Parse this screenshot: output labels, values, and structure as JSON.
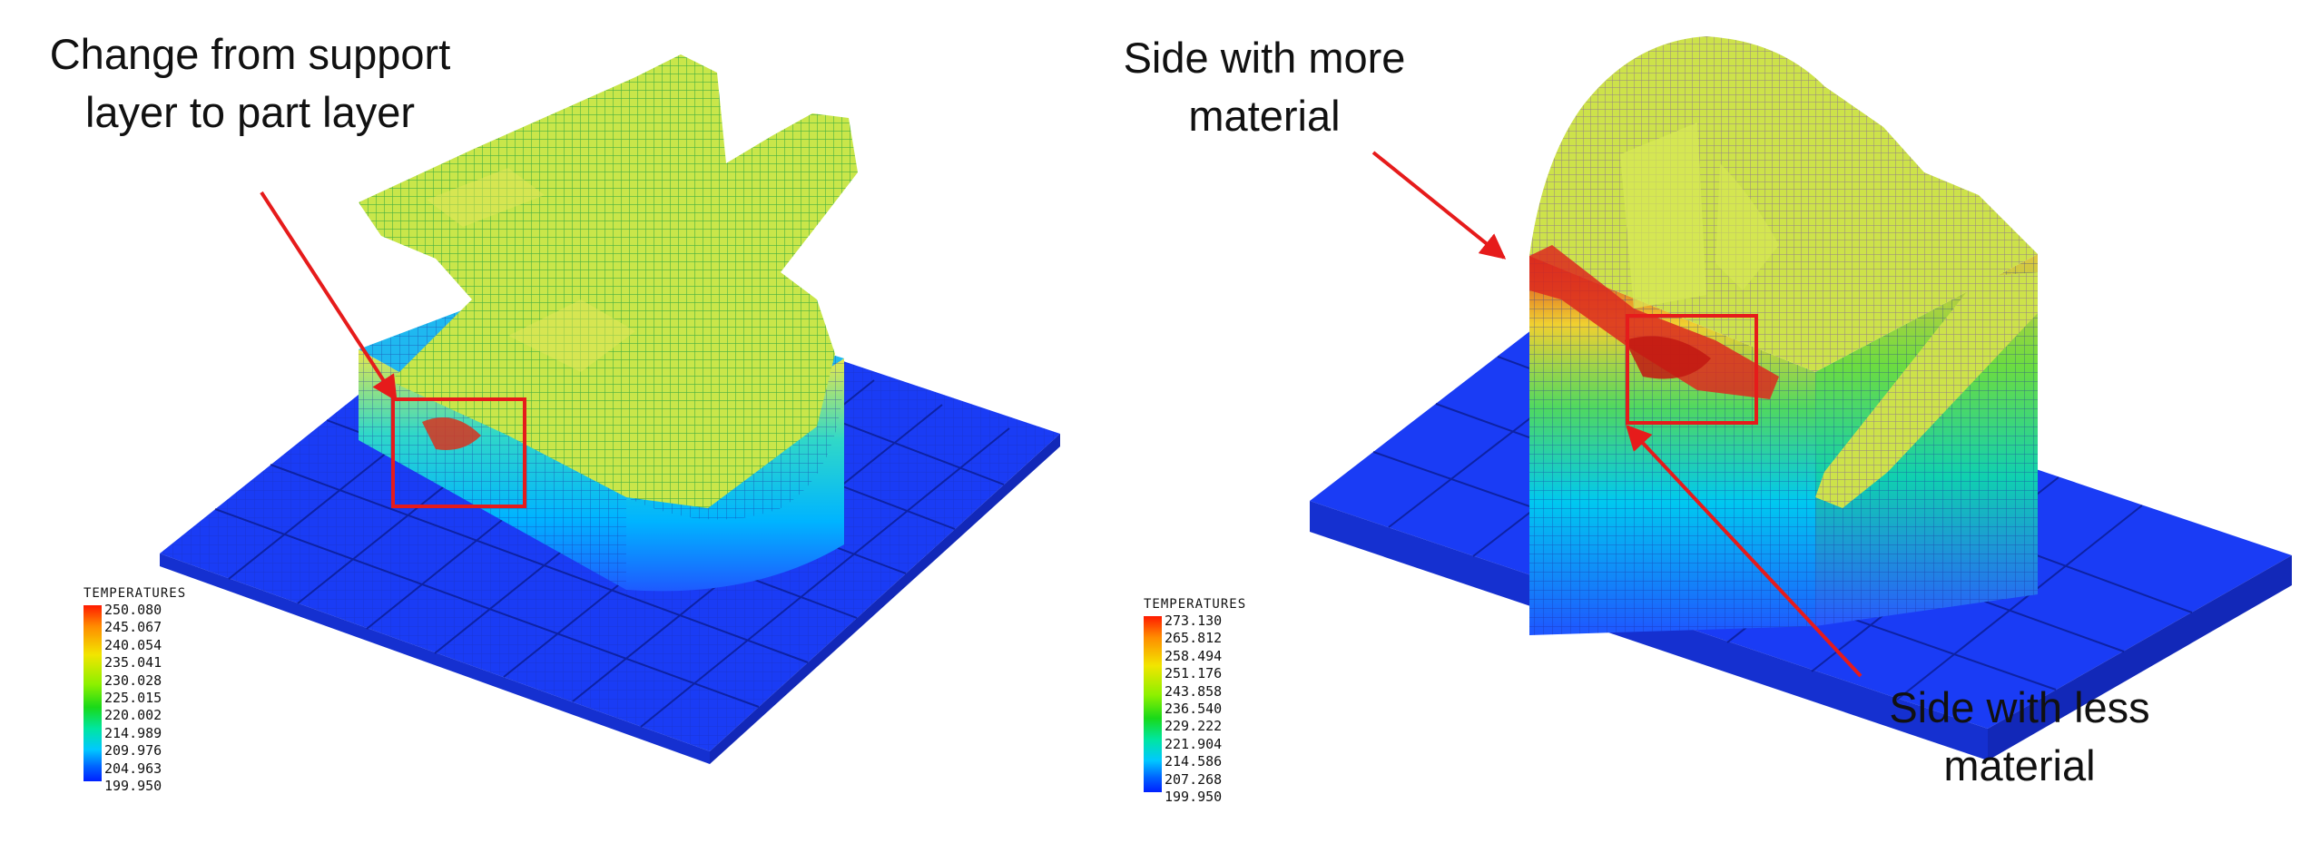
{
  "left_panel": {
    "callout": {
      "line1": "Change from support",
      "line2": "layer to part layer"
    },
    "legend": {
      "title": "TEMPERATURES",
      "values": [
        "250.080",
        "245.067",
        "240.054",
        "235.041",
        "230.028",
        "225.015",
        "220.002",
        "214.989",
        "209.976",
        "204.963",
        "199.950"
      ]
    }
  },
  "right_panel": {
    "callout_top": {
      "line1": "Side with more",
      "line2": "material"
    },
    "callout_bottom": {
      "line1": "Side with less",
      "line2": "material"
    },
    "legend": {
      "title": "TEMPERATURES",
      "values": [
        "273.130",
        "265.812",
        "258.494",
        "251.176",
        "243.858",
        "236.540",
        "229.222",
        "221.904",
        "214.586",
        "207.268",
        "199.950"
      ]
    }
  },
  "colors": {
    "annotation": "#e61b1b",
    "baseplate": "#1a3cf5",
    "part_surface": "#c8e83a",
    "hot": "#e0301e"
  }
}
